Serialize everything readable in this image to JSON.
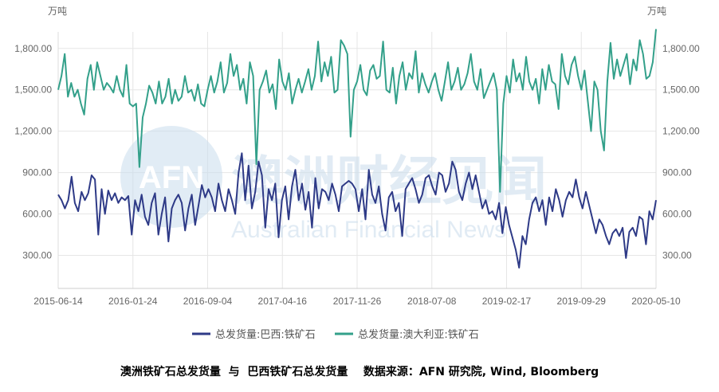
{
  "chart_data": {
    "type": "line",
    "left_unit": "万吨",
    "right_unit": "万吨",
    "y_ticks": [
      "300.00",
      "600.00",
      "900.00",
      "1,200.00",
      "1,500.00",
      "1,800.00"
    ],
    "y_tick_values": [
      300,
      600,
      900,
      1200,
      1500,
      1800
    ],
    "ylim": [
      60,
      1920
    ],
    "x_ticks": [
      "2015-06-14",
      "2016-01-24",
      "2016-09-04",
      "2017-04-16",
      "2017-11-26",
      "2018-07-08",
      "2019-02-17",
      "2019-09-29",
      "2020-05-10"
    ],
    "grid": true,
    "legend_position": "bottom",
    "series": [
      {
        "name": "总发货量:巴西:铁矿石",
        "color": "#2e3a87",
        "values": [
          740,
          700,
          640,
          700,
          870,
          680,
          620,
          760,
          700,
          750,
          880,
          850,
          450,
          780,
          600,
          770,
          700,
          750,
          680,
          720,
          700,
          730,
          450,
          700,
          620,
          740,
          580,
          520,
          680,
          750,
          450,
          600,
          720,
          400,
          640,
          700,
          740,
          680,
          480,
          640,
          740,
          520,
          660,
          810,
          720,
          780,
          720,
          620,
          820,
          700,
          620,
          780,
          700,
          600,
          900,
          1040,
          700,
          950,
          640,
          760,
          980,
          880,
          500,
          780,
          700,
          820,
          430,
          700,
          800,
          560,
          800,
          920,
          700,
          820,
          630,
          760,
          500,
          860,
          640,
          780,
          760,
          700,
          820,
          740,
          620,
          800,
          820,
          840,
          820,
          780,
          620,
          780,
          560,
          920,
          740,
          680,
          800,
          600,
          480,
          720,
          760,
          620,
          680,
          440,
          780,
          820,
          860,
          780,
          680,
          740,
          860,
          880,
          800,
          740,
          900,
          880,
          760,
          820,
          980,
          920,
          760,
          700,
          820,
          900,
          780,
          880,
          760,
          640,
          700,
          600,
          620,
          560,
          680,
          460,
          650,
          520,
          430,
          340,
          210,
          440,
          380,
          560,
          680,
          720,
          620,
          700,
          520,
          720,
          620,
          780,
          700,
          580,
          700,
          760,
          720,
          850,
          720,
          640,
          760,
          660,
          560,
          460,
          560,
          520,
          440,
          380,
          460,
          490,
          440,
          500,
          280,
          470,
          500,
          440,
          580,
          560,
          380,
          620,
          560,
          700
        ]
      },
      {
        "name": "总发货量:澳大利亚:铁矿石",
        "color": "#33a08a",
        "values": [
          1500,
          1600,
          1760,
          1450,
          1550,
          1450,
          1500,
          1400,
          1320,
          1580,
          1680,
          1500,
          1700,
          1600,
          1500,
          1550,
          1520,
          1480,
          1600,
          1500,
          1450,
          1680,
          1400,
          1380,
          1400,
          940,
          1300,
          1400,
          1530,
          1480,
          1400,
          1560,
          1400,
          1450,
          1580,
          1400,
          1500,
          1420,
          1450,
          1600,
          1480,
          1500,
          1420,
          1540,
          1400,
          1380,
          1500,
          1600,
          1480,
          1560,
          1700,
          1480,
          1550,
          1760,
          1600,
          1680,
          1500,
          1580,
          1400,
          1700,
          1600,
          960,
          1500,
          1560,
          1640,
          1480,
          1540,
          1360,
          1720,
          1560,
          1500,
          1620,
          1400,
          1500,
          1580,
          1480,
          1560,
          1650,
          1500,
          1600,
          1850,
          1560,
          1700,
          1600,
          1740,
          1480,
          1500,
          1860,
          1820,
          1760,
          1160,
          1500,
          1560,
          1680,
          1500,
          1460,
          1640,
          1680,
          1580,
          1600,
          1850,
          1500,
          1480,
          1660,
          1400,
          1600,
          1700,
          1500,
          1620,
          1580,
          1780,
          1480,
          1620,
          1540,
          1480,
          1560,
          1620,
          1500,
          1420,
          1560,
          1700,
          1500,
          1560,
          1660,
          1500,
          1540,
          1620,
          1760,
          1560,
          1500,
          1650,
          1440,
          1500,
          1560,
          1620,
          1500,
          760,
          1400,
          1600,
          1480,
          1720,
          1560,
          1620,
          1500,
          1740,
          1560,
          1500,
          1580,
          1400,
          1650,
          1500,
          1680,
          1560,
          1540,
          1360,
          1760,
          1600,
          1540,
          1680,
          1740,
          1600,
          1500,
          1640,
          1420,
          1200,
          1560,
          1500,
          1200,
          1060,
          1560,
          1840,
          1580,
          1720,
          1600,
          1680,
          1760,
          1540,
          1720,
          1640,
          1860,
          1760,
          1580,
          1600,
          1700,
          1940
        ]
      }
    ]
  },
  "watermark": {
    "logo": "AFN",
    "title": "澳洲财经见闻",
    "subtitle": "Australian Financial News"
  },
  "caption": "澳洲铁矿石总发货量  与  巴西铁矿石总发货量    数据来源：AFN 研究院, Wind, Bloomberg"
}
